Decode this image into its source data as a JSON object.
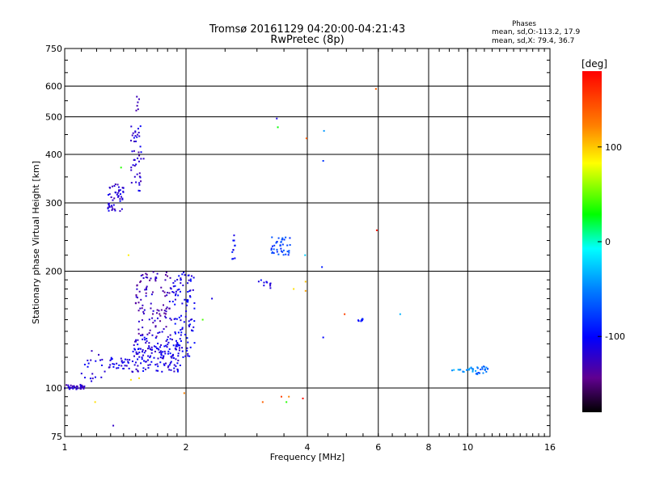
{
  "header": {
    "title_line1": "Tromsø 20161129 04:20:00-04:21:43",
    "title_line2": "RwPretec (8p)",
    "phases_title": "Phases",
    "phases_o": "mean, sd,O:-113.2, 17.9",
    "phases_x": "mean, sd,X:  79.4, 36.7"
  },
  "colorbar": {
    "unit": "[deg]",
    "ticks": [
      "100",
      "0",
      "-100"
    ],
    "tick_values": [
      100,
      0,
      -100
    ],
    "range": [
      -180,
      180
    ]
  },
  "chart_data": {
    "type": "scatter",
    "xlabel": "Frequency [MHz]",
    "ylabel": "Stationary phase Virtual Height [km]",
    "x_scale": "log",
    "y_scale": "log",
    "xlim": [
      1,
      16
    ],
    "ylim": [
      75,
      750
    ],
    "x_ticks": [
      1,
      2,
      4,
      6,
      8,
      10,
      16
    ],
    "x_tick_labels": [
      "1",
      "2",
      "4",
      "6",
      "8",
      "10",
      "16"
    ],
    "y_ticks": [
      75,
      100,
      200,
      300,
      400,
      500,
      600,
      750
    ],
    "y_tick_labels": [
      "75",
      "100",
      "200",
      "300",
      "400",
      "500",
      "600",
      "750"
    ],
    "grid": true,
    "clusters": [
      {
        "x0": 1.0,
        "x1": 1.12,
        "y0": 99,
        "y1": 102,
        "n": 40,
        "phase": -120
      },
      {
        "x0": 1.1,
        "x1": 1.3,
        "y0": 104,
        "y1": 125,
        "n": 20,
        "phase": -115
      },
      {
        "x0": 1.25,
        "x1": 1.45,
        "y0": 112,
        "y1": 120,
        "n": 30,
        "phase": -110
      },
      {
        "x0": 1.28,
        "x1": 1.4,
        "y0": 285,
        "y1": 340,
        "n": 50,
        "phase": -115
      },
      {
        "x0": 1.46,
        "x1": 1.55,
        "y0": 320,
        "y1": 480,
        "n": 45,
        "phase": -115
      },
      {
        "x0": 1.5,
        "x1": 1.53,
        "y0": 510,
        "y1": 570,
        "n": 6,
        "phase": -120
      },
      {
        "x0": 1.47,
        "x1": 1.95,
        "y0": 110,
        "y1": 135,
        "n": 150,
        "phase": -110
      },
      {
        "x0": 1.5,
        "x1": 1.85,
        "y0": 135,
        "y1": 200,
        "n": 110,
        "phase": -125
      },
      {
        "x0": 1.85,
        "x1": 2.1,
        "y0": 120,
        "y1": 200,
        "n": 100,
        "phase": -105
      },
      {
        "x0": 2.6,
        "x1": 2.65,
        "y0": 215,
        "y1": 250,
        "n": 12,
        "phase": -100
      },
      {
        "x0": 3.0,
        "x1": 3.25,
        "y0": 180,
        "y1": 190,
        "n": 10,
        "phase": -105
      },
      {
        "x0": 3.25,
        "x1": 3.65,
        "y0": 220,
        "y1": 245,
        "n": 40,
        "phase": -75
      },
      {
        "x0": 5.35,
        "x1": 5.5,
        "y0": 148,
        "y1": 151,
        "n": 8,
        "phase": -95
      },
      {
        "x0": 9.0,
        "x1": 10.5,
        "y0": 110,
        "y1": 113,
        "n": 18,
        "phase": -40
      },
      {
        "x0": 10.5,
        "x1": 11.3,
        "y0": 108,
        "y1": 114,
        "n": 20,
        "phase": -60
      }
    ],
    "points": [
      {
        "x": 1.19,
        "y": 92,
        "phase": 110
      },
      {
        "x": 1.32,
        "y": 80,
        "phase": -120
      },
      {
        "x": 1.38,
        "y": 370,
        "phase": 40
      },
      {
        "x": 1.44,
        "y": 220,
        "phase": 105
      },
      {
        "x": 1.46,
        "y": 105,
        "phase": 110
      },
      {
        "x": 1.53,
        "y": 106,
        "phase": 110
      },
      {
        "x": 1.57,
        "y": 390,
        "phase": -120
      },
      {
        "x": 1.98,
        "y": 97,
        "phase": 140
      },
      {
        "x": 2.2,
        "y": 150,
        "phase": 50
      },
      {
        "x": 2.32,
        "y": 170,
        "phase": -110
      },
      {
        "x": 3.1,
        "y": 92,
        "phase": 150
      },
      {
        "x": 3.36,
        "y": 495,
        "phase": -110
      },
      {
        "x": 3.38,
        "y": 470,
        "phase": 30
      },
      {
        "x": 3.45,
        "y": 95,
        "phase": 160
      },
      {
        "x": 3.55,
        "y": 92,
        "phase": 40
      },
      {
        "x": 3.6,
        "y": 95,
        "phase": 140
      },
      {
        "x": 3.7,
        "y": 180,
        "phase": 110
      },
      {
        "x": 3.9,
        "y": 94,
        "phase": 175
      },
      {
        "x": 3.98,
        "y": 440,
        "phase": 150
      },
      {
        "x": 3.96,
        "y": 188,
        "phase": 120
      },
      {
        "x": 3.96,
        "y": 178,
        "phase": 130
      },
      {
        "x": 3.95,
        "y": 220,
        "phase": -20
      },
      {
        "x": 4.4,
        "y": 460,
        "phase": -40
      },
      {
        "x": 4.38,
        "y": 385,
        "phase": -80
      },
      {
        "x": 4.35,
        "y": 205,
        "phase": -90
      },
      {
        "x": 4.38,
        "y": 135,
        "phase": -100
      },
      {
        "x": 4.95,
        "y": 155,
        "phase": 160
      },
      {
        "x": 5.92,
        "y": 590,
        "phase": 150
      },
      {
        "x": 5.95,
        "y": 255,
        "phase": 175
      },
      {
        "x": 6.8,
        "y": 155,
        "phase": -30
      }
    ]
  }
}
